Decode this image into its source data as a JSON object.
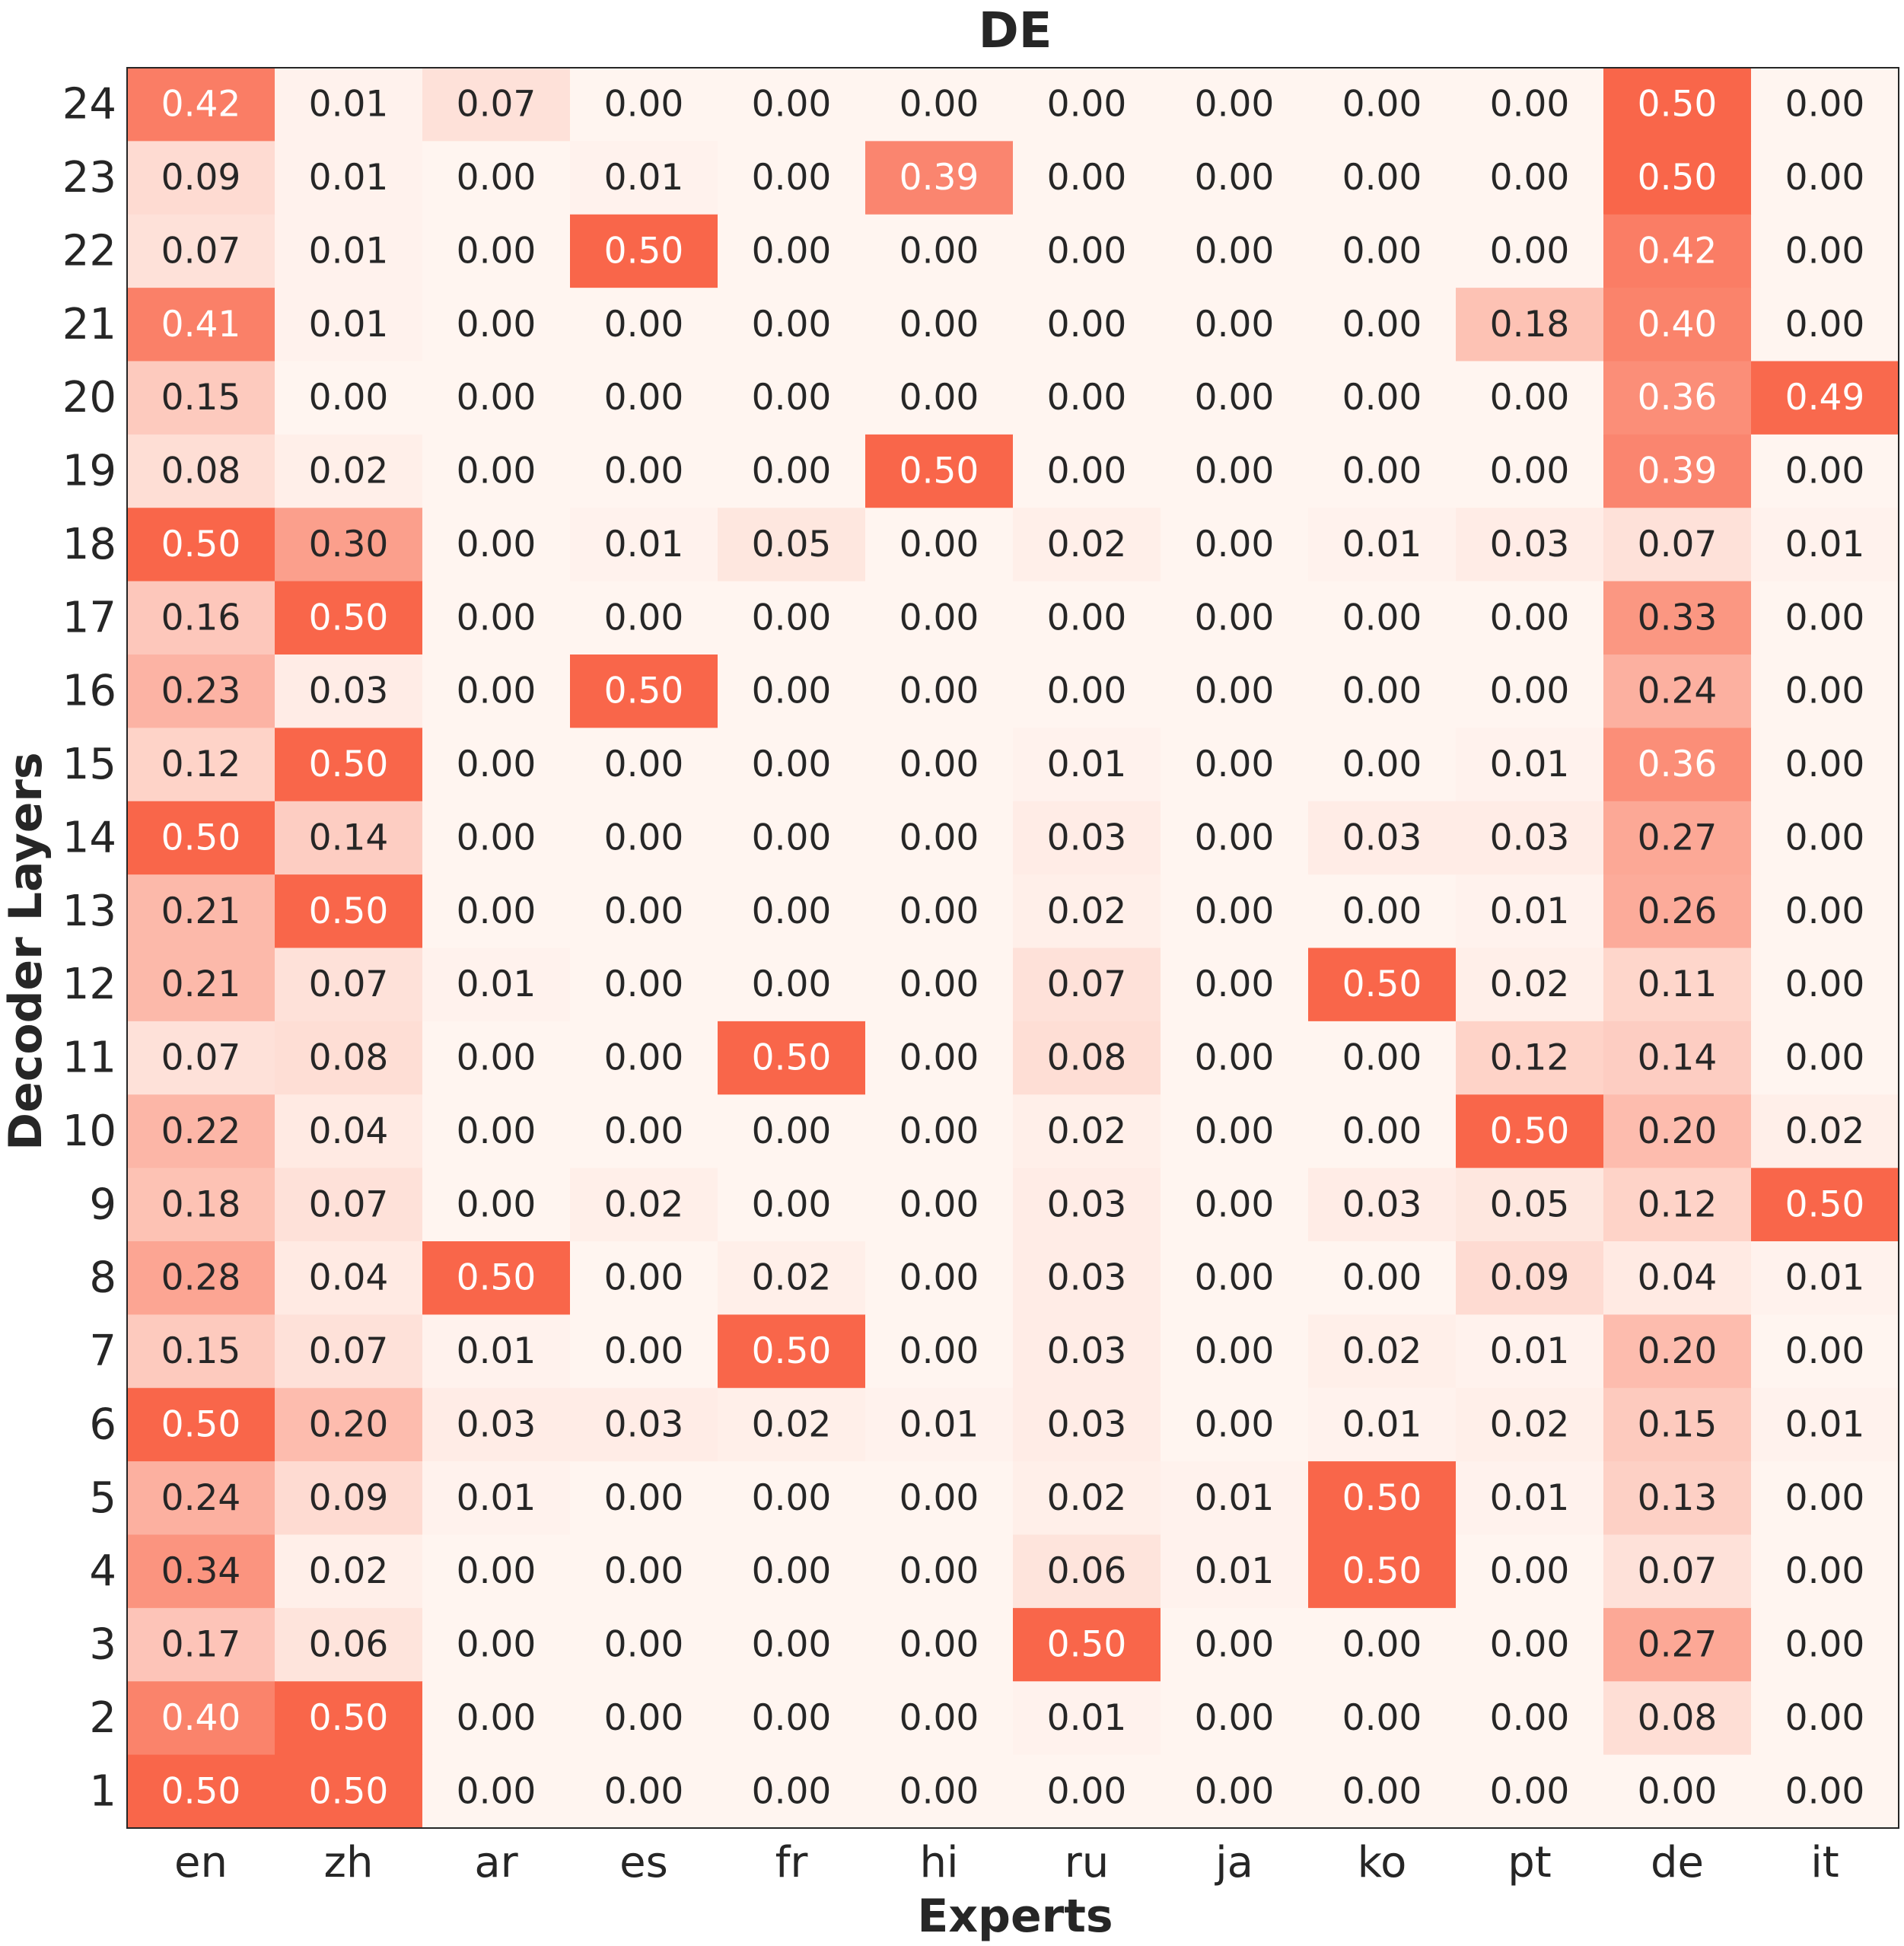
{
  "chart_data": {
    "type": "heatmap",
    "title": "DE",
    "xlabel": "Experts",
    "ylabel": "Decoder Layers",
    "colormap": {
      "low": "#fff5f0",
      "high": "#f9664a"
    },
    "vmin": 0,
    "vmax": 0.5,
    "columns": [
      "en",
      "zh",
      "ar",
      "es",
      "fr",
      "hi",
      "ru",
      "ja",
      "ko",
      "pt",
      "de",
      "it"
    ],
    "rows": [
      "24",
      "23",
      "22",
      "21",
      "20",
      "19",
      "18",
      "17",
      "16",
      "15",
      "14",
      "13",
      "12",
      "11",
      "10",
      "9",
      "8",
      "7",
      "6",
      "5",
      "4",
      "3",
      "2",
      "1"
    ],
    "values": [
      [
        0.42,
        0.01,
        0.07,
        0.0,
        0.0,
        0.0,
        0.0,
        0.0,
        0.0,
        0.0,
        0.5,
        0.0
      ],
      [
        0.09,
        0.01,
        0.0,
        0.01,
        0.0,
        0.39,
        0.0,
        0.0,
        0.0,
        0.0,
        0.5,
        0.0
      ],
      [
        0.07,
        0.01,
        0.0,
        0.5,
        0.0,
        0.0,
        0.0,
        0.0,
        0.0,
        0.0,
        0.42,
        0.0
      ],
      [
        0.41,
        0.01,
        0.0,
        0.0,
        0.0,
        0.0,
        0.0,
        0.0,
        0.0,
        0.18,
        0.4,
        0.0
      ],
      [
        0.15,
        0.0,
        0.0,
        0.0,
        0.0,
        0.0,
        0.0,
        0.0,
        0.0,
        0.0,
        0.36,
        0.49
      ],
      [
        0.08,
        0.02,
        0.0,
        0.0,
        0.0,
        0.5,
        0.0,
        0.0,
        0.0,
        0.0,
        0.39,
        0.0
      ],
      [
        0.5,
        0.3,
        0.0,
        0.01,
        0.05,
        0.0,
        0.02,
        0.0,
        0.01,
        0.03,
        0.07,
        0.01
      ],
      [
        0.16,
        0.5,
        0.0,
        0.0,
        0.0,
        0.0,
        0.0,
        0.0,
        0.0,
        0.0,
        0.33,
        0.0
      ],
      [
        0.23,
        0.03,
        0.0,
        0.5,
        0.0,
        0.0,
        0.0,
        0.0,
        0.0,
        0.0,
        0.24,
        0.0
      ],
      [
        0.12,
        0.5,
        0.0,
        0.0,
        0.0,
        0.0,
        0.01,
        0.0,
        0.0,
        0.01,
        0.36,
        0.0
      ],
      [
        0.5,
        0.14,
        0.0,
        0.0,
        0.0,
        0.0,
        0.03,
        0.0,
        0.03,
        0.03,
        0.27,
        0.0
      ],
      [
        0.21,
        0.5,
        0.0,
        0.0,
        0.0,
        0.0,
        0.02,
        0.0,
        0.0,
        0.01,
        0.26,
        0.0
      ],
      [
        0.21,
        0.07,
        0.01,
        0.0,
        0.0,
        0.0,
        0.07,
        0.0,
        0.5,
        0.02,
        0.11,
        0.0
      ],
      [
        0.07,
        0.08,
        0.0,
        0.0,
        0.5,
        0.0,
        0.08,
        0.0,
        0.0,
        0.12,
        0.14,
        0.0
      ],
      [
        0.22,
        0.04,
        0.0,
        0.0,
        0.0,
        0.0,
        0.02,
        0.0,
        0.0,
        0.5,
        0.2,
        0.02
      ],
      [
        0.18,
        0.07,
        0.0,
        0.02,
        0.0,
        0.0,
        0.03,
        0.0,
        0.03,
        0.05,
        0.12,
        0.5
      ],
      [
        0.28,
        0.04,
        0.5,
        0.0,
        0.02,
        0.0,
        0.03,
        0.0,
        0.0,
        0.09,
        0.04,
        0.01
      ],
      [
        0.15,
        0.07,
        0.01,
        0.0,
        0.5,
        0.0,
        0.03,
        0.0,
        0.02,
        0.01,
        0.2,
        0.0
      ],
      [
        0.5,
        0.2,
        0.03,
        0.03,
        0.02,
        0.01,
        0.03,
        0.0,
        0.01,
        0.02,
        0.15,
        0.01
      ],
      [
        0.24,
        0.09,
        0.01,
        0.0,
        0.0,
        0.0,
        0.02,
        0.01,
        0.5,
        0.01,
        0.13,
        0.0
      ],
      [
        0.34,
        0.02,
        0.0,
        0.0,
        0.0,
        0.0,
        0.06,
        0.01,
        0.5,
        0.0,
        0.07,
        0.0
      ],
      [
        0.17,
        0.06,
        0.0,
        0.0,
        0.0,
        0.0,
        0.5,
        0.0,
        0.0,
        0.0,
        0.27,
        0.0
      ],
      [
        0.4,
        0.5,
        0.0,
        0.0,
        0.0,
        0.0,
        0.01,
        0.0,
        0.0,
        0.0,
        0.08,
        0.0
      ],
      [
        0.5,
        0.5,
        0.0,
        0.0,
        0.0,
        0.0,
        0.0,
        0.0,
        0.0,
        0.0,
        0.0,
        0.0
      ]
    ]
  }
}
